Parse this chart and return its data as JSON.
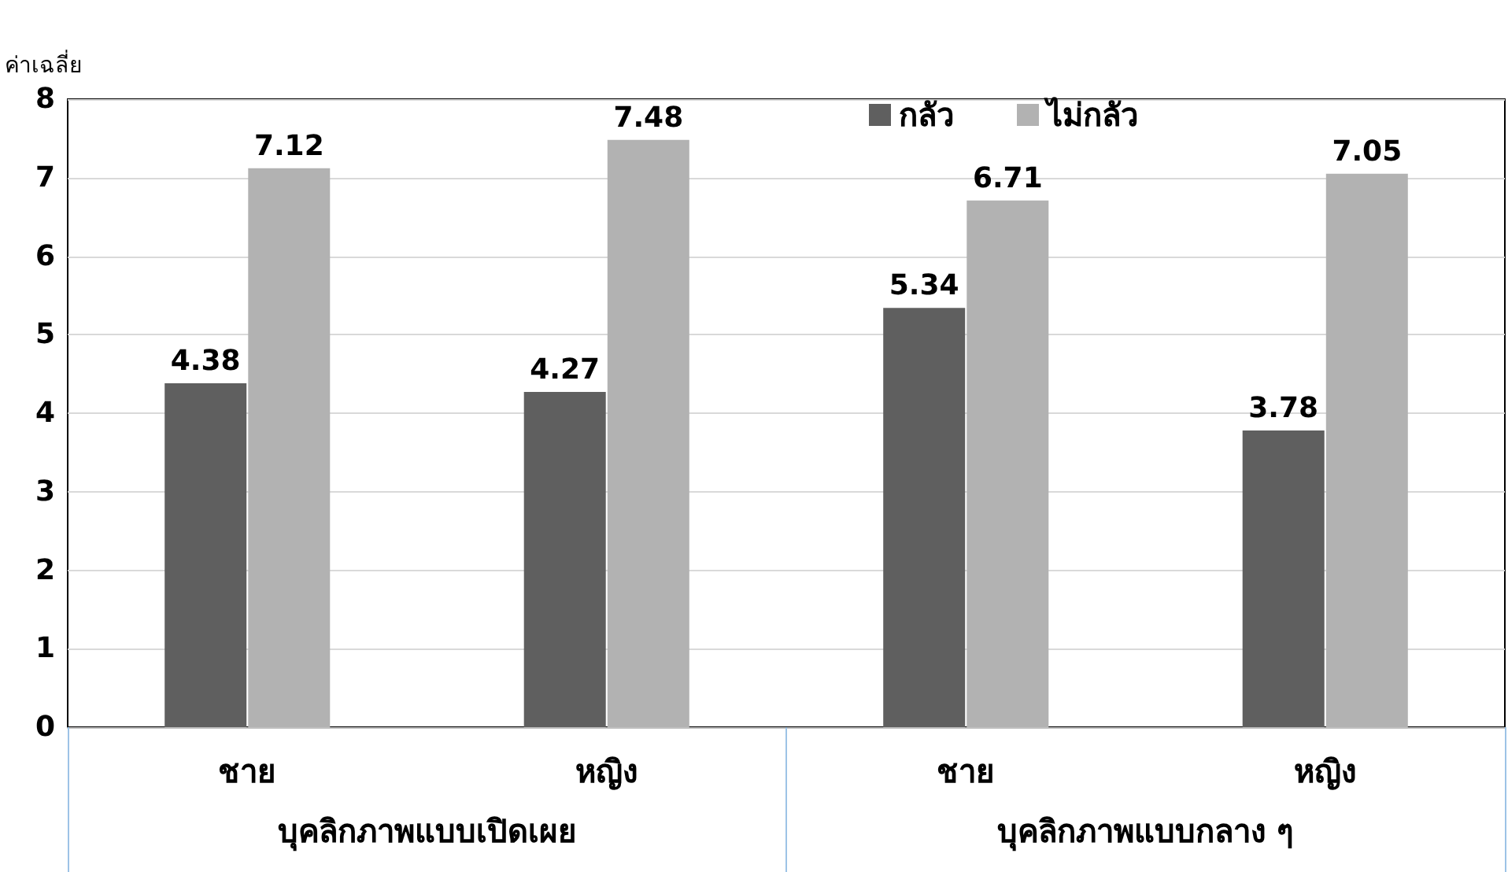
{
  "chart_data": {
    "type": "bar",
    "ylabel": "ค่าเฉลี่ย",
    "categories": [
      "ชาย",
      "หญิง",
      "ชาย",
      "หญิง"
    ],
    "series": [
      {
        "name": "กลัว",
        "color": "#5f5f5f",
        "values": [
          4.38,
          4.27,
          5.34,
          3.78
        ]
      },
      {
        "name": "ไม่กลัว",
        "color": "#b2b2b2",
        "values": [
          7.12,
          7.48,
          6.71,
          7.05
        ]
      }
    ],
    "annotations": [
      "บุคลิกภาพแบบเปิดเผย",
      "บุคลิกภาพแบบกลาง ๆ"
    ],
    "ylim": [
      0,
      8
    ],
    "yticks": [
      0,
      1,
      2,
      3,
      4,
      5,
      6,
      7,
      8
    ],
    "grid": "y",
    "legend": "top right",
    "data_labels": true
  }
}
